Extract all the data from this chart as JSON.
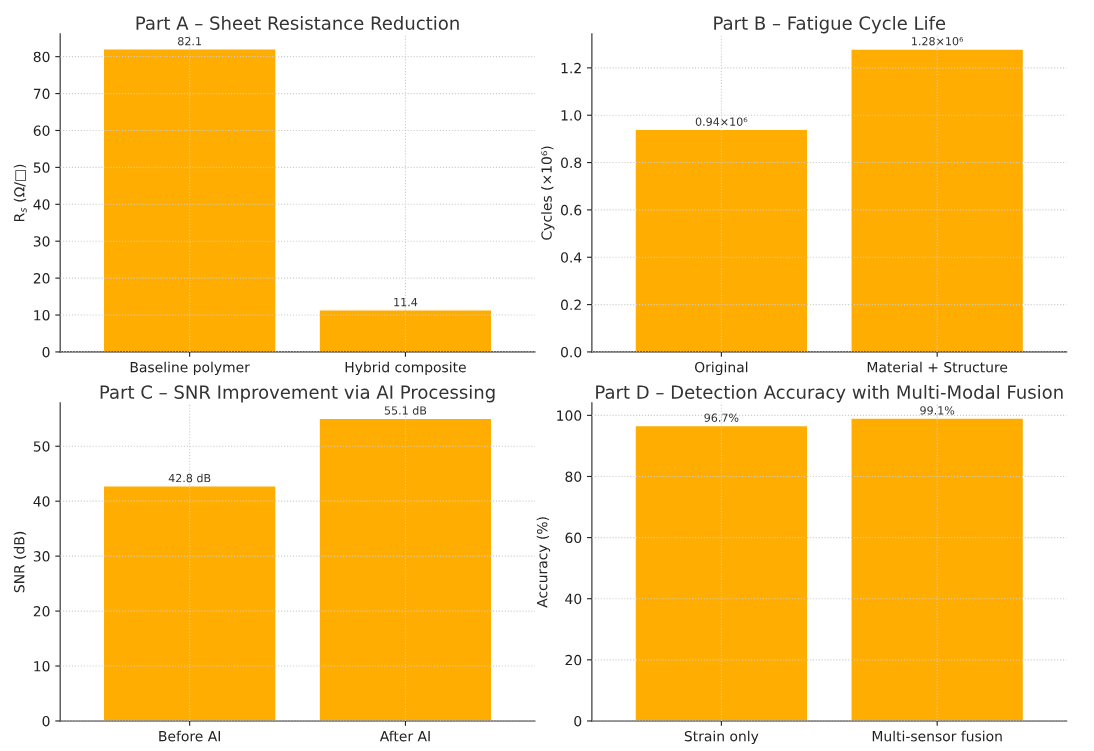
{
  "chart_data": [
    {
      "type": "bar",
      "title": "Part A – Sheet Resistance Reduction",
      "ylabel": "R$_{s}$ (Ω/□)",
      "categories": [
        "Baseline polymer",
        "Hybrid composite"
      ],
      "values": [
        82.1,
        11.4
      ],
      "value_labels": [
        "82.1",
        "11.4"
      ],
      "color": "#ffad00",
      "ylim": [
        0,
        86.2
      ],
      "yticks": [
        0,
        10,
        20,
        30,
        40,
        50,
        60,
        70,
        80
      ],
      "grid": true
    },
    {
      "type": "bar",
      "title": "Part B – Fatigue Cycle Life",
      "ylabel": "Cycles (×10⁶)",
      "categories": [
        "Original",
        "Material + Structure"
      ],
      "values": [
        0.94,
        1.28
      ],
      "annotations": [
        {
          "text": "0.94×10⁶",
          "x": "Original",
          "y": 0.94
        },
        {
          "text": "1.28×10⁶",
          "x": "Material + Structure",
          "y": 1.28
        }
      ],
      "color": "#ffad00",
      "ylim": [
        0,
        1.344
      ],
      "yticks": [
        {
          "value": 0,
          "label": "0.0"
        },
        0.2,
        0.4,
        0.6,
        0.8,
        {
          "value": 1,
          "label": "1.0"
        },
        1.2
      ],
      "grid": true
    },
    {
      "type": "bar",
      "title": "Part C – SNR Improvement via AI Processing",
      "ylabel": "SNR (dB)",
      "categories": [
        "Before AI",
        "After AI"
      ],
      "values": [
        42.8,
        55.1
      ],
      "value_labels": [
        "42.8 dB",
        "55.1 dB"
      ],
      "color": "#ffad00",
      "ylim": [
        0,
        57.9
      ],
      "yticks": [
        0,
        10,
        20,
        30,
        40,
        50
      ],
      "grid": true
    },
    {
      "type": "bar",
      "title": "Part D – Detection Accuracy with Multi-Modal Fusion",
      "ylabel": "Accuracy (%)",
      "categories": [
        "Strain only",
        "Multi-sensor fusion"
      ],
      "values": [
        96.7,
        99.1
      ],
      "value_labels": [
        "96.7%",
        "99.1%"
      ],
      "color": "#ffad00",
      "ylim": [
        0,
        104.1
      ],
      "yticks": [
        0,
        20,
        40,
        60,
        80,
        100
      ],
      "grid": true
    }
  ]
}
